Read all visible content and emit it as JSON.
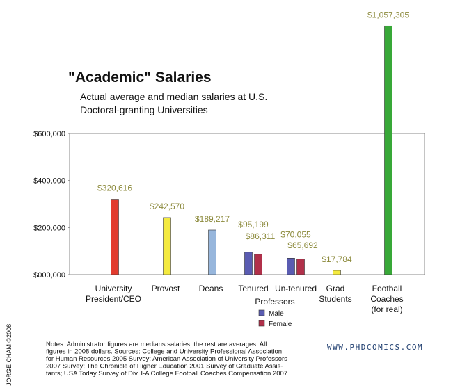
{
  "chart_data": {
    "type": "bar",
    "title": "\"Academic\" Salaries",
    "subtitle": [
      "Actual average and median salaries at U.S.",
      "Doctoral-granting Universities"
    ],
    "categories": [
      [
        "University",
        "President/CEO"
      ],
      [
        "Provost"
      ],
      [
        "Deans"
      ],
      [
        "Tenured"
      ],
      [
        "Un-tenured"
      ],
      [
        "Grad",
        "Students"
      ],
      [
        "Football",
        "Coaches",
        "(for real)"
      ]
    ],
    "group_label": "Professors",
    "values": [
      320616,
      242570,
      189217,
      null,
      null,
      17784,
      1057305
    ],
    "value_labels": [
      "$320,616",
      "$242,570",
      "$189,217",
      null,
      null,
      "$17,784",
      "$1,057,305"
    ],
    "colors": [
      "#e23b2e",
      "#f4ea3f",
      "#97b6dc",
      null,
      null,
      "#f4ea3f",
      "#38a838"
    ],
    "series": [
      {
        "name": "Male",
        "color": "#5a5cb2",
        "values": [
          null,
          null,
          null,
          95199,
          70055,
          null,
          null
        ],
        "value_labels": [
          null,
          null,
          null,
          "$95,199",
          "$70,055",
          null,
          null
        ]
      },
      {
        "name": "Female",
        "color": "#b1304a",
        "values": [
          null,
          null,
          null,
          86311,
          65692,
          null,
          null
        ],
        "value_labels": [
          null,
          null,
          null,
          "$86,311",
          "$65,692",
          null,
          null
        ]
      }
    ],
    "ylim": [
      0,
      600000
    ],
    "yticks": [
      {
        "value": 0,
        "label": "$000,000"
      },
      {
        "value": 200000,
        "label": "$200,000"
      },
      {
        "value": 400000,
        "label": "$400,000"
      },
      {
        "value": 600000,
        "label": "$600,000"
      }
    ],
    "notes": [
      "Notes: Administrator figures are medians salaries, the rest are averages. All",
      "figures in 2008 dollars. Sources: College and University Professional Association",
      "for Human Resources 2005 Survey; American Association of University Professors",
      "2007 Survey; The Chronicle of Higher Education 2001 Survey of Graduate Assis-",
      "tants; USA Today Survey of Div. I-A College Football Coaches Compensation 2007."
    ],
    "credit": "JORGE CHAM ©2008",
    "website": "WWW.PHDCOMICS.COM"
  }
}
